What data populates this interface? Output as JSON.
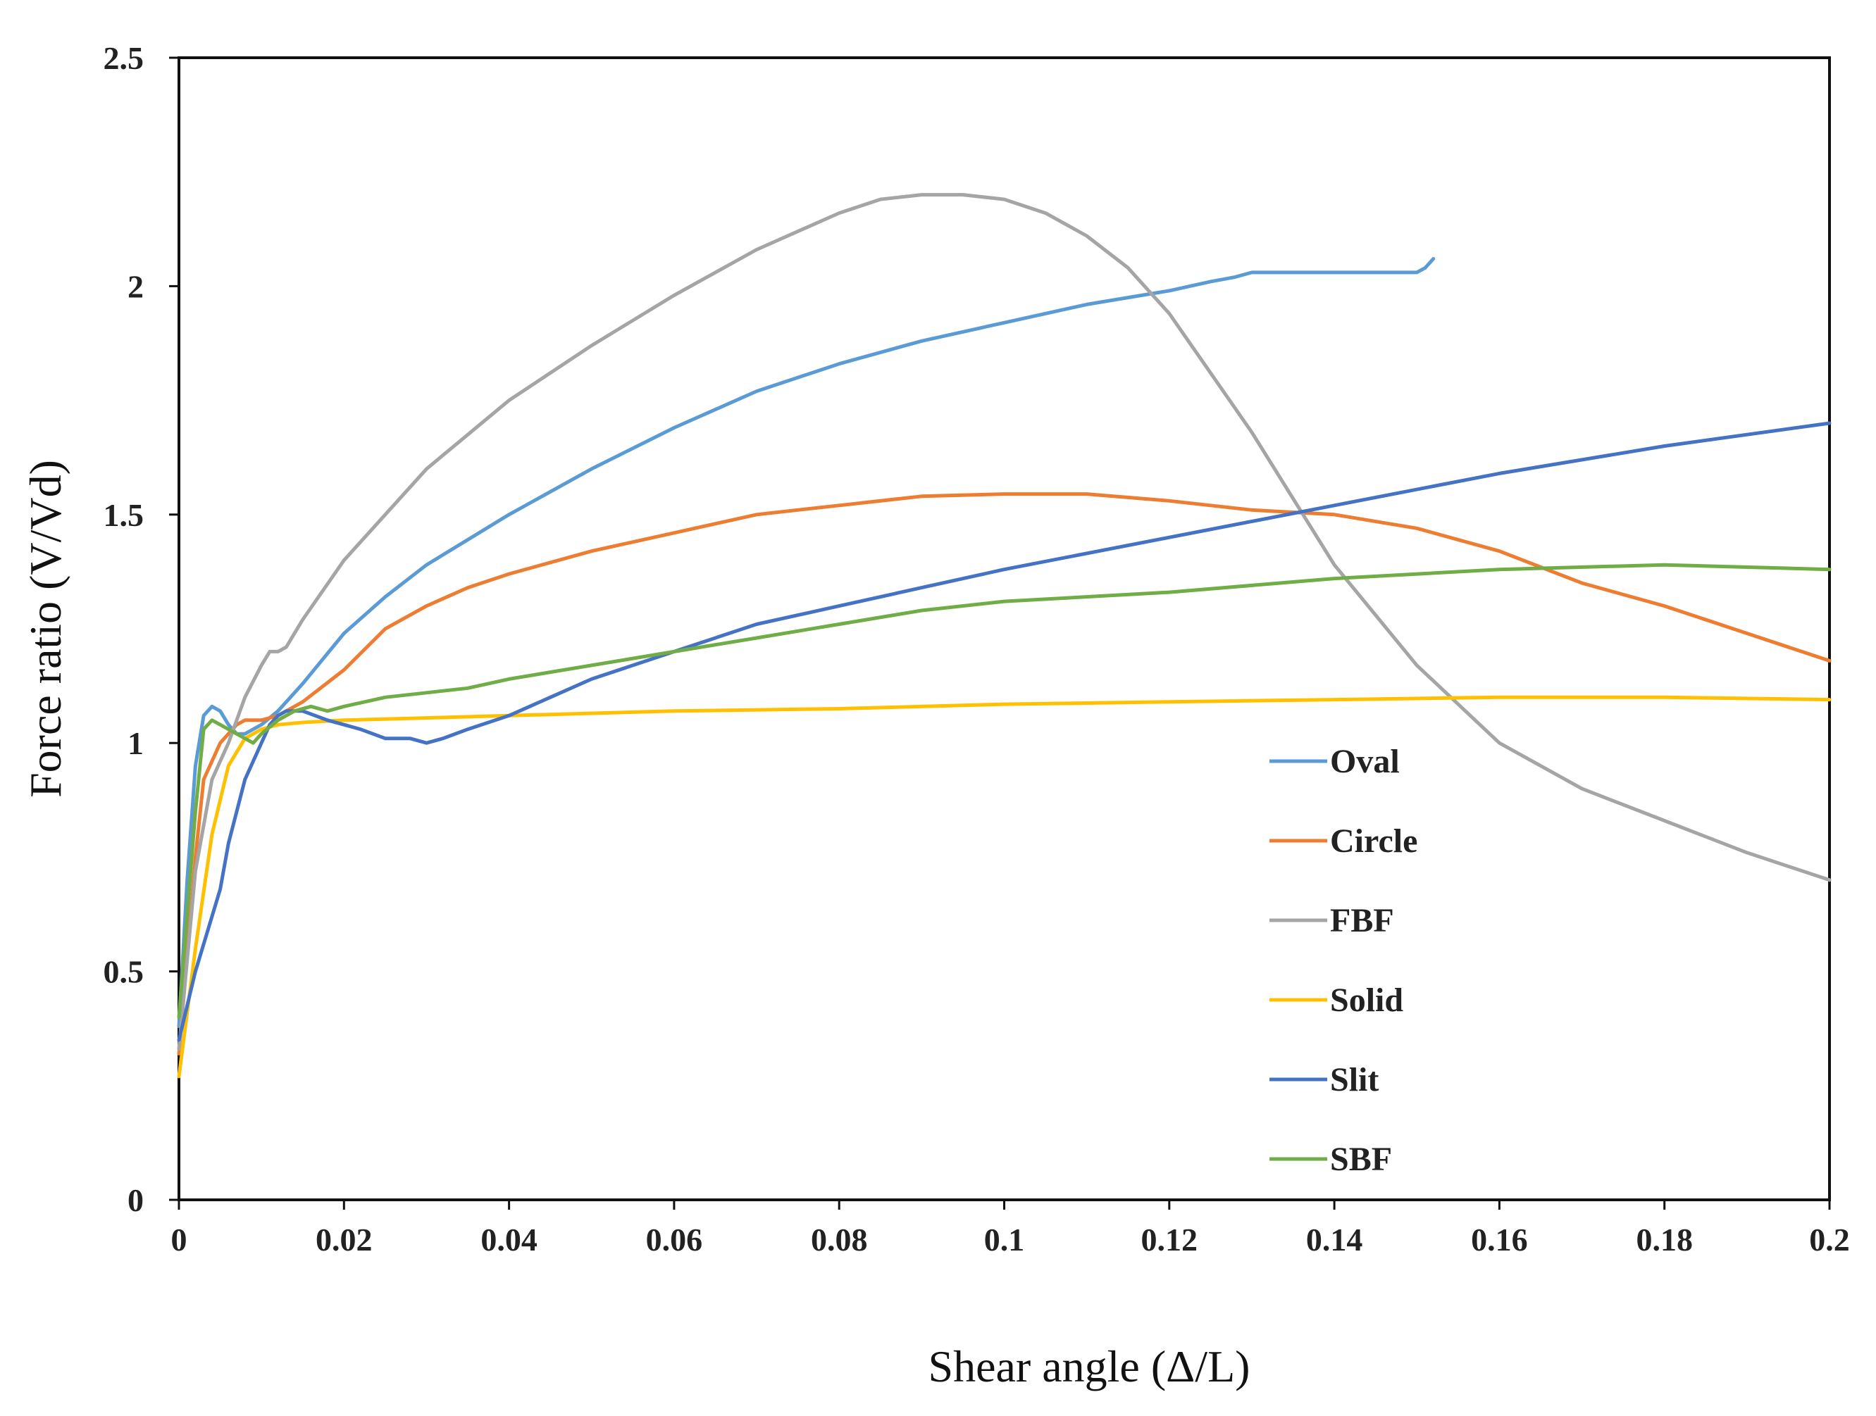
{
  "chart_data": {
    "type": "line",
    "title": "",
    "xlabel": "Shear angle (Δ/L)",
    "ylabel": "Force ratio (V/Vd)",
    "xlim": [
      0,
      0.2
    ],
    "ylim": [
      0,
      2.5
    ],
    "grid": false,
    "legend_position": "right-lower-middle",
    "x_ticks": [
      0,
      0.02,
      0.04,
      0.06,
      0.08,
      0.1,
      0.12,
      0.14,
      0.16,
      0.18,
      0.2
    ],
    "x_tick_labels": [
      "0",
      "0.02",
      "0.04",
      "0.06",
      "0.08",
      "0.1",
      "0.12",
      "0.14",
      "0.16",
      "0.18",
      "0.2"
    ],
    "y_ticks": [
      0,
      0.5,
      1,
      1.5,
      2,
      2.5
    ],
    "y_tick_labels": [
      "0",
      "0.5",
      "1",
      "1.5",
      "2",
      "2.5"
    ],
    "series": [
      {
        "name": "Oval",
        "color": "#5B9BD5",
        "x": [
          0,
          0.001,
          0.002,
          0.003,
          0.004,
          0.005,
          0.006,
          0.007,
          0.008,
          0.009,
          0.01,
          0.012,
          0.015,
          0.02,
          0.025,
          0.03,
          0.04,
          0.05,
          0.06,
          0.07,
          0.08,
          0.09,
          0.1,
          0.11,
          0.12,
          0.125,
          0.128,
          0.13,
          0.14,
          0.15,
          0.151,
          0.152
        ],
        "y": [
          0.38,
          0.7,
          0.95,
          1.06,
          1.08,
          1.07,
          1.04,
          1.02,
          1.02,
          1.03,
          1.04,
          1.07,
          1.13,
          1.24,
          1.32,
          1.39,
          1.5,
          1.6,
          1.69,
          1.77,
          1.83,
          1.88,
          1.92,
          1.96,
          1.99,
          2.01,
          2.02,
          2.03,
          2.03,
          2.03,
          2.04,
          2.06
        ]
      },
      {
        "name": "Circle",
        "color": "#ED7D31",
        "x": [
          0,
          0.002,
          0.003,
          0.005,
          0.007,
          0.008,
          0.01,
          0.012,
          0.015,
          0.02,
          0.025,
          0.03,
          0.035,
          0.04,
          0.05,
          0.06,
          0.07,
          0.08,
          0.09,
          0.1,
          0.11,
          0.12,
          0.13,
          0.14,
          0.15,
          0.16,
          0.17,
          0.18,
          0.19,
          0.2
        ],
        "y": [
          0.32,
          0.75,
          0.92,
          1.0,
          1.04,
          1.05,
          1.05,
          1.06,
          1.09,
          1.16,
          1.25,
          1.3,
          1.34,
          1.37,
          1.42,
          1.46,
          1.5,
          1.52,
          1.54,
          1.545,
          1.545,
          1.53,
          1.51,
          1.5,
          1.47,
          1.42,
          1.35,
          1.3,
          1.24,
          1.18
        ]
      },
      {
        "name": "FBF",
        "color": "#A5A5A5",
        "x": [
          0,
          0.002,
          0.004,
          0.006,
          0.008,
          0.01,
          0.011,
          0.012,
          0.013,
          0.015,
          0.02,
          0.03,
          0.04,
          0.05,
          0.06,
          0.07,
          0.08,
          0.085,
          0.09,
          0.095,
          0.1,
          0.105,
          0.11,
          0.115,
          0.12,
          0.13,
          0.14,
          0.15,
          0.16,
          0.17,
          0.18,
          0.19,
          0.2
        ],
        "y": [
          0.33,
          0.72,
          0.92,
          1.0,
          1.1,
          1.17,
          1.2,
          1.2,
          1.21,
          1.27,
          1.4,
          1.6,
          1.75,
          1.87,
          1.98,
          2.08,
          2.16,
          2.19,
          2.2,
          2.2,
          2.19,
          2.16,
          2.11,
          2.04,
          1.94,
          1.68,
          1.39,
          1.17,
          1.0,
          0.9,
          0.83,
          0.76,
          0.7
        ]
      },
      {
        "name": "Solid",
        "color": "#FFC000",
        "x": [
          0,
          0.002,
          0.004,
          0.006,
          0.008,
          0.01,
          0.012,
          0.015,
          0.02,
          0.04,
          0.06,
          0.08,
          0.1,
          0.12,
          0.14,
          0.16,
          0.18,
          0.2
        ],
        "y": [
          0.27,
          0.55,
          0.8,
          0.95,
          1.01,
          1.03,
          1.04,
          1.045,
          1.05,
          1.06,
          1.07,
          1.075,
          1.085,
          1.09,
          1.095,
          1.1,
          1.1,
          1.095
        ]
      },
      {
        "name": "Slit",
        "color": "#4472C4",
        "x": [
          0,
          0.002,
          0.004,
          0.005,
          0.006,
          0.008,
          0.01,
          0.011,
          0.012,
          0.013,
          0.015,
          0.018,
          0.02,
          0.022,
          0.025,
          0.028,
          0.03,
          0.032,
          0.035,
          0.04,
          0.045,
          0.05,
          0.06,
          0.07,
          0.08,
          0.09,
          0.1,
          0.12,
          0.14,
          0.16,
          0.18,
          0.2
        ],
        "y": [
          0.35,
          0.5,
          0.62,
          0.68,
          0.78,
          0.92,
          1.0,
          1.04,
          1.06,
          1.07,
          1.07,
          1.05,
          1.04,
          1.03,
          1.01,
          1.01,
          1.0,
          1.01,
          1.03,
          1.06,
          1.1,
          1.14,
          1.2,
          1.26,
          1.3,
          1.34,
          1.38,
          1.45,
          1.52,
          1.59,
          1.65,
          1.7
        ]
      },
      {
        "name": "SBF",
        "color": "#70AD47",
        "x": [
          0,
          0.002,
          0.003,
          0.004,
          0.005,
          0.006,
          0.008,
          0.009,
          0.01,
          0.012,
          0.014,
          0.016,
          0.018,
          0.02,
          0.025,
          0.03,
          0.035,
          0.04,
          0.05,
          0.06,
          0.07,
          0.08,
          0.09,
          0.1,
          0.12,
          0.14,
          0.16,
          0.18,
          0.2
        ],
        "y": [
          0.4,
          0.85,
          1.03,
          1.05,
          1.04,
          1.03,
          1.01,
          1.0,
          1.02,
          1.05,
          1.07,
          1.08,
          1.07,
          1.08,
          1.1,
          1.11,
          1.12,
          1.14,
          1.17,
          1.2,
          1.23,
          1.26,
          1.29,
          1.31,
          1.33,
          1.36,
          1.38,
          1.39,
          1.38
        ]
      }
    ]
  }
}
